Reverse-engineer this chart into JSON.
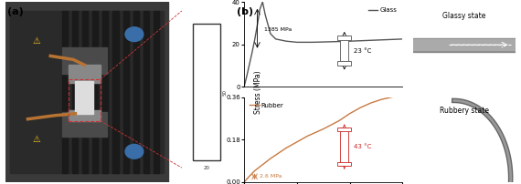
{
  "panel_a_label": "(a)",
  "panel_b_label": "(b)",
  "glass_label": "Glass",
  "rubber_label": "Rubber",
  "glass_modulus": "1385 MPa",
  "glass_temp": "23 °C",
  "rubber_modulus": "2.6 MPa",
  "rubber_temp": "43 °C",
  "glassy_state_label": "Glassy state",
  "rubbery_state_label": "Rubbery state",
  "xlabel": "",
  "ylabel": "Stress (MPa)",
  "glass_color": "#555555",
  "rubber_color": "#c87941",
  "glass_curve_x": [
    0.0,
    0.005,
    0.01,
    0.015,
    0.02,
    0.025,
    0.03,
    0.035,
    0.04,
    0.05,
    0.06,
    0.08,
    0.1,
    0.13,
    0.16,
    0.2,
    0.25,
    0.3
  ],
  "glass_curve_y": [
    0.0,
    5.0,
    10.5,
    16.0,
    22.0,
    29.0,
    36.5,
    40.0,
    34.0,
    25.0,
    22.5,
    21.5,
    21.0,
    21.0,
    21.2,
    21.5,
    22.0,
    22.5
  ],
  "rubber_curve_x": [
    0.0,
    0.01,
    0.02,
    0.05,
    0.08,
    0.1,
    0.12,
    0.15,
    0.18,
    0.2,
    0.22,
    0.24,
    0.26,
    0.28,
    0.3
  ],
  "rubber_curve_y": [
    0.0,
    0.025,
    0.048,
    0.1,
    0.145,
    0.17,
    0.195,
    0.225,
    0.26,
    0.29,
    0.315,
    0.335,
    0.35,
    0.36,
    0.37
  ],
  "glass_ylim": [
    0,
    40
  ],
  "rubber_ylim": [
    0,
    0.36
  ],
  "xlim": [
    0.0,
    0.3
  ],
  "xticks": [
    0.0,
    0.1,
    0.2,
    0.3
  ],
  "glass_yticks": [
    0,
    20,
    40
  ],
  "rubber_yticks": [
    0,
    0.18,
    0.36
  ],
  "bg_color": "#f5f5f5",
  "plot_bg": "#f5f5f5"
}
